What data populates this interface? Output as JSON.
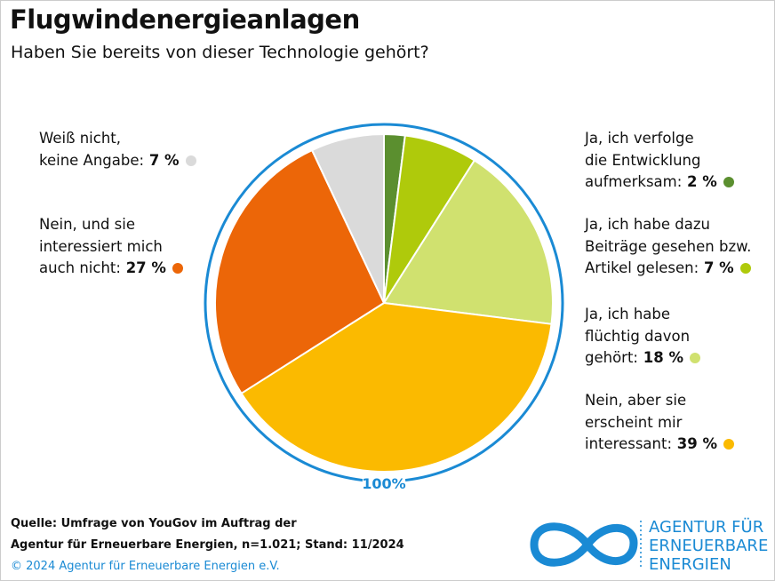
{
  "title": "Flugwindenergieanlagen",
  "subtitle": "Haben Sie bereits von dieser Technologie gehört?",
  "chart_data": {
    "type": "pie",
    "title": "Flugwindenergieanlagen",
    "total_label": "100%",
    "start": "top",
    "direction": "clockwise",
    "slices": [
      {
        "lines": [
          "Ja, ich verfolge",
          "die Entwicklung",
          "aufmerksam:"
        ],
        "value": 2,
        "value_label": "2 %",
        "color": "#5b8f2f"
      },
      {
        "lines": [
          "Ja, ich habe dazu",
          "Beiträge gesehen bzw.",
          "Artikel gelesen:"
        ],
        "value": 7,
        "value_label": "7 %",
        "color": "#afca0b"
      },
      {
        "lines": [
          "Ja, ich habe",
          "flüchtig davon",
          "gehört:"
        ],
        "value": 18,
        "value_label": "18 %",
        "color": "#d0e16f"
      },
      {
        "lines": [
          "Nein, aber sie",
          "erscheint mir",
          "interessant:"
        ],
        "value": 39,
        "value_label": "39 %",
        "color": "#fbba00"
      },
      {
        "lines": [
          "Nein, und sie",
          "interessiert mich",
          "auch nicht:"
        ],
        "value": 27,
        "value_label": "27 %",
        "color": "#ec6608"
      },
      {
        "lines": [
          "Weiß nicht,",
          "keine Angabe:"
        ],
        "value": 7,
        "value_label": "7 %",
        "color": "#dadada"
      }
    ]
  },
  "footer": {
    "source1": "Quelle: Umfrage von YouGov im Auftrag der",
    "source2": "Agentur für Erneuerbare Energien, n=1.021; Stand: 11/2024",
    "copyright": "© 2024 Agentur für Erneuerbare Energien e.V."
  },
  "logo": {
    "lines": [
      "AGENTUR FÜR",
      "ERNEUERBARE",
      "ENERGIEN"
    ]
  },
  "accent": "#1a8ad4"
}
